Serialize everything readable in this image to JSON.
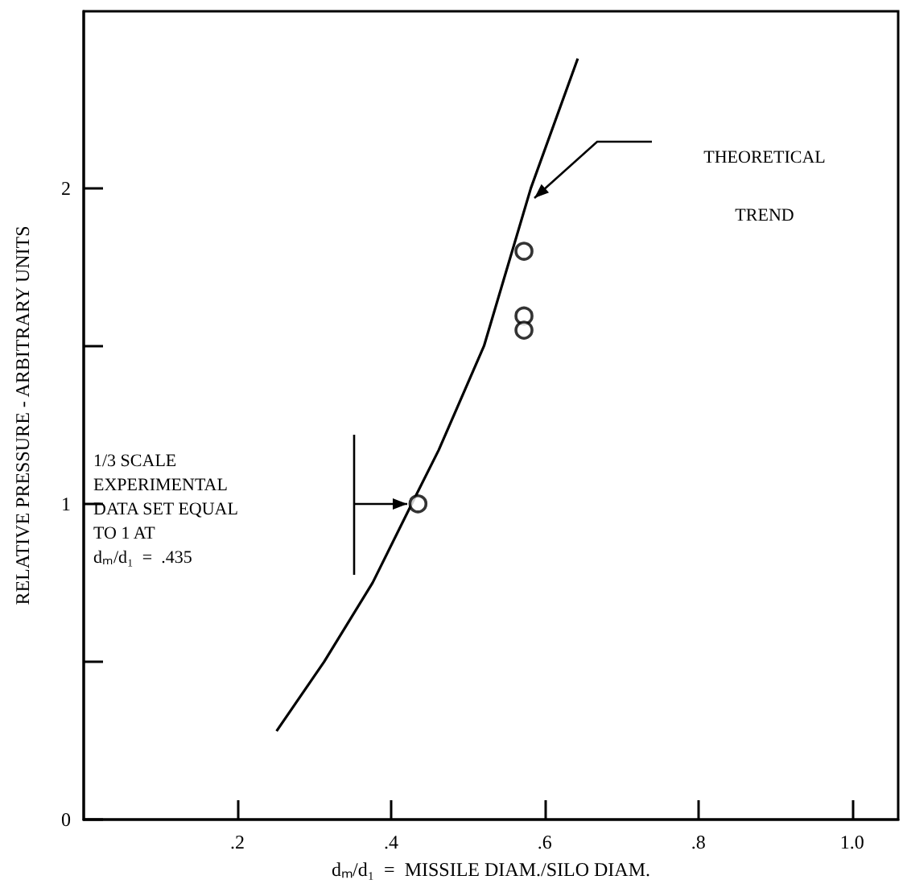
{
  "chart_data": {
    "type": "scatter",
    "xlabel": "dₘ/d₁  =  MISSILE DIAM./SILO DIAM.",
    "ylabel": "RELATIVE PRESSURE - ARBITRARY UNITS",
    "xlim": [
      0,
      1.06
    ],
    "ylim": [
      0,
      2.56
    ],
    "xticks": [
      {
        "value": 0.2,
        "label": ".2"
      },
      {
        "value": 0.4,
        "label": ".4"
      },
      {
        "value": 0.6,
        "label": ".6"
      },
      {
        "value": 0.8,
        "label": ".8"
      },
      {
        "value": 1.0,
        "label": "1.0"
      }
    ],
    "yticks": [
      0,
      {
        "value": 0.5,
        "label": null
      },
      1,
      {
        "value": 1.5,
        "label": null
      },
      2
    ],
    "grid": false,
    "series": [
      {
        "marker": "circle",
        "color": "#000000",
        "x": [
          0.435,
          0.573,
          0.573,
          0.573
        ],
        "values": [
          1.0,
          1.8,
          1.595,
          1.55
        ]
      },
      {
        "type": "line",
        "marker": "none",
        "color": "#000000",
        "x": [
          0.251,
          0.313,
          0.376,
          0.427,
          0.462,
          0.521,
          0.582,
          0.643
        ],
        "values": [
          0.28,
          0.5,
          0.75,
          1.0,
          1.17,
          1.5,
          2.0,
          2.41
        ]
      }
    ],
    "annotations": [
      "THEORETICAL\nTREND",
      "1/3 SCALE\nEXPERIMENTAL\nDATA SET EQUAL\nTO 1 AT\ndₘ/d₁  =  .435"
    ]
  }
}
